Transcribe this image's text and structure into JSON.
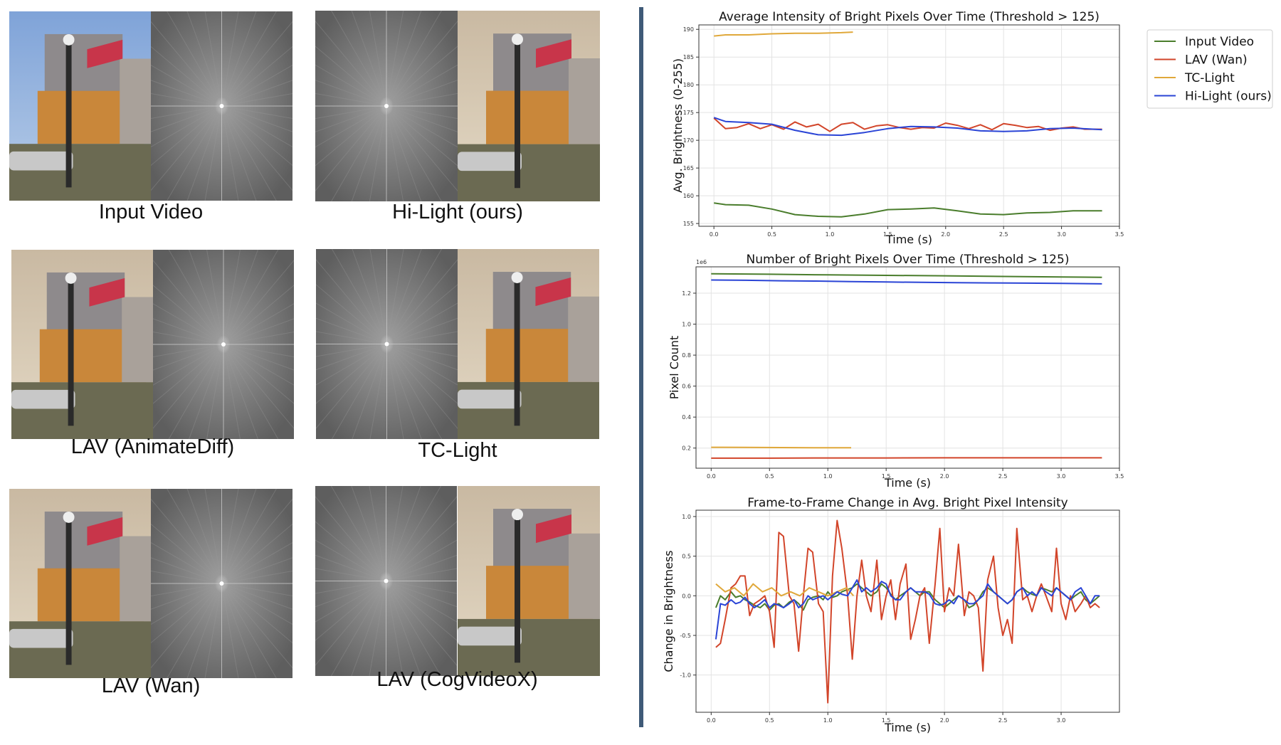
{
  "panels": [
    {
      "caption": "Input Video",
      "layout": "photo-fft"
    },
    {
      "caption": "Hi-Light (ours)",
      "layout": "fft-photo"
    },
    {
      "caption": "LAV (AnimateDiff)",
      "layout": "photo-fft"
    },
    {
      "caption": "TC-Light",
      "layout": "fft-photo"
    },
    {
      "caption": "LAV (Wan)",
      "layout": "photo-fft"
    },
    {
      "caption": "LAV (CogVideoX)",
      "layout": "fft-photo"
    }
  ],
  "colors": {
    "input": "#4a7d2c",
    "lav": "#d2452a",
    "tc": "#e0a83a",
    "hilight": "#2a44d6",
    "divider": "#3f5a78"
  },
  "legend": {
    "entries": [
      "Input Video",
      "LAV (Wan)",
      "TC-Light",
      "Hi-Light (ours)"
    ]
  },
  "chart_data": [
    {
      "type": "line",
      "title": "Average Intensity of Bright Pixels Over Time (Threshold > 125)",
      "xlabel": "Time (s)",
      "ylabel": "Avg. Brightness (0-255)",
      "xlim": [
        -0.13,
        3.5
      ],
      "ylim": [
        154.5,
        190.8
      ],
      "xticks": [
        "0.0",
        "0.5",
        "1.0",
        "1.5",
        "2.0",
        "2.5",
        "3.0",
        "3.5"
      ],
      "yticks": [
        "155",
        "160",
        "165",
        "170",
        "175",
        "180",
        "185",
        "190"
      ],
      "grid": true,
      "series": [
        {
          "name": "Input Video",
          "x": [
            0,
            0.1,
            0.3,
            0.5,
            0.7,
            0.9,
            1.1,
            1.3,
            1.5,
            1.7,
            1.9,
            2.1,
            2.3,
            2.5,
            2.7,
            2.9,
            3.1,
            3.35
          ],
          "y": [
            158.7,
            158.4,
            158.3,
            157.6,
            156.6,
            156.3,
            156.2,
            156.7,
            157.5,
            157.6,
            157.8,
            157.3,
            156.7,
            156.6,
            156.9,
            157.0,
            157.3,
            157.3
          ]
        },
        {
          "name": "LAV (Wan)",
          "x": [
            0,
            0.1,
            0.2,
            0.3,
            0.4,
            0.5,
            0.6,
            0.7,
            0.8,
            0.9,
            1.0,
            1.1,
            1.2,
            1.3,
            1.4,
            1.5,
            1.6,
            1.7,
            1.8,
            1.9,
            2.0,
            2.1,
            2.2,
            2.3,
            2.4,
            2.5,
            2.6,
            2.7,
            2.8,
            2.9,
            3.0,
            3.1,
            3.2,
            3.35
          ],
          "y": [
            174.0,
            172.1,
            172.3,
            173.0,
            172.1,
            172.8,
            172.0,
            173.3,
            172.4,
            172.9,
            171.6,
            172.9,
            173.2,
            172.0,
            172.6,
            172.8,
            172.3,
            172.0,
            172.3,
            172.2,
            173.1,
            172.7,
            172.1,
            172.8,
            171.9,
            173.0,
            172.7,
            172.3,
            172.5,
            171.8,
            172.2,
            172.4,
            172.0,
            172.0
          ]
        },
        {
          "name": "TC-Light",
          "x": [
            0,
            0.1,
            0.3,
            0.5,
            0.7,
            0.9,
            1.1,
            1.2
          ],
          "y": [
            188.8,
            189.0,
            189.0,
            189.2,
            189.3,
            189.3,
            189.4,
            189.5
          ]
        },
        {
          "name": "Hi-Light (ours)",
          "x": [
            0,
            0.1,
            0.3,
            0.5,
            0.7,
            0.9,
            1.1,
            1.3,
            1.5,
            1.7,
            1.9,
            2.1,
            2.3,
            2.5,
            2.7,
            2.9,
            3.1,
            3.35
          ],
          "y": [
            174.1,
            173.4,
            173.2,
            172.9,
            171.8,
            171.0,
            170.9,
            171.4,
            172.1,
            172.5,
            172.4,
            172.2,
            171.7,
            171.6,
            171.7,
            172.1,
            172.2,
            171.9
          ]
        }
      ]
    },
    {
      "type": "line",
      "title": "Number of Bright Pixels Over Time (Threshold > 125)",
      "xlabel": "Time (s)",
      "ylabel": "Pixel Count",
      "scale_label": "1e6",
      "xlim": [
        -0.13,
        3.5
      ],
      "ylim": [
        0.07,
        1.37
      ],
      "xticks": [
        "0.0",
        "0.5",
        "1.0",
        "1.5",
        "2.0",
        "2.5",
        "3.0",
        "3.5"
      ],
      "yticks": [
        "0.2",
        "0.4",
        "0.6",
        "0.8",
        "1.0",
        "1.2"
      ],
      "grid": true,
      "series": [
        {
          "name": "Input Video",
          "x": [
            0,
            0.5,
            1.0,
            1.5,
            2.0,
            2.5,
            3.0,
            3.35
          ],
          "y": [
            1.325,
            1.322,
            1.318,
            1.315,
            1.312,
            1.308,
            1.305,
            1.302
          ]
        },
        {
          "name": "LAV (Wan)",
          "x": [
            0,
            0.5,
            1.0,
            1.5,
            2.0,
            2.5,
            3.0,
            3.35
          ],
          "y": [
            0.135,
            0.135,
            0.136,
            0.136,
            0.137,
            0.137,
            0.137,
            0.137
          ]
        },
        {
          "name": "TC-Light",
          "x": [
            0,
            0.3,
            0.6,
            0.9,
            1.2
          ],
          "y": [
            0.205,
            0.204,
            0.203,
            0.202,
            0.202
          ]
        },
        {
          "name": "Hi-Light (ours)",
          "x": [
            0,
            0.3,
            0.6,
            0.9,
            1.2,
            1.5,
            1.8,
            2.1,
            2.4,
            2.7,
            3.0,
            3.35
          ],
          "y": [
            1.285,
            1.283,
            1.28,
            1.278,
            1.275,
            1.272,
            1.27,
            1.268,
            1.266,
            1.265,
            1.263,
            1.26
          ]
        }
      ]
    },
    {
      "type": "line",
      "title": "Frame-to-Frame Change in Avg. Bright Pixel Intensity",
      "xlabel": "Time (s)",
      "ylabel": "Change in Brightness",
      "xlim": [
        -0.13,
        3.5
      ],
      "ylim": [
        -1.47,
        1.08
      ],
      "xticks": [
        "0.0",
        "0.5",
        "1.0",
        "1.5",
        "2.0",
        "2.5",
        "3.0"
      ],
      "yticks": [
        "-1.0",
        "-0.5",
        "0.0",
        "0.5",
        "1.0"
      ],
      "grid": true,
      "series": [
        {
          "name": "Input Video",
          "x": [
            0.04,
            0.08,
            0.12,
            0.17,
            0.21,
            0.25,
            0.29,
            0.33,
            0.37,
            0.42,
            0.46,
            0.5,
            0.54,
            0.58,
            0.62,
            0.67,
            0.71,
            0.75,
            0.79,
            0.83,
            0.87,
            0.92,
            0.96,
            1.0,
            1.04,
            1.08,
            1.12,
            1.17,
            1.21,
            1.25,
            1.29,
            1.33,
            1.37,
            1.42,
            1.46,
            1.5,
            1.54,
            1.58,
            1.62,
            1.67,
            1.71,
            1.75,
            1.79,
            1.83,
            1.87,
            1.92,
            1.96,
            2.0,
            2.04,
            2.08,
            2.12,
            2.17,
            2.21,
            2.25,
            2.29,
            2.33,
            2.37,
            2.42,
            2.46,
            2.5,
            2.54,
            2.58,
            2.62,
            2.67,
            2.71,
            2.75,
            2.79,
            2.83,
            2.87,
            2.92,
            2.96,
            3.0,
            3.04,
            3.08,
            3.12,
            3.17,
            3.21,
            3.25,
            3.29,
            3.33
          ],
          "y": [
            -0.15,
            0.0,
            -0.05,
            0.05,
            -0.02,
            0.0,
            -0.05,
            -0.08,
            -0.12,
            -0.15,
            -0.1,
            -0.18,
            -0.12,
            -0.1,
            -0.15,
            -0.08,
            -0.05,
            -0.1,
            -0.18,
            -0.05,
            -0.02,
            0.0,
            -0.05,
            0.05,
            -0.02,
            0.0,
            0.05,
            0.08,
            0.1,
            0.15,
            0.1,
            0.05,
            0.0,
            0.05,
            0.15,
            0.1,
            0.02,
            -0.05,
            0.0,
            0.05,
            0.1,
            0.05,
            0.0,
            0.05,
            0.05,
            -0.05,
            -0.1,
            -0.15,
            -0.1,
            -0.05,
            0.0,
            -0.05,
            -0.15,
            -0.12,
            -0.05,
            0.05,
            0.1,
            0.05,
            0.0,
            -0.05,
            -0.1,
            -0.05,
            0.05,
            0.1,
            0.05,
            0.02,
            0.0,
            0.1,
            0.08,
            0.05,
            0.1,
            0.05,
            0.0,
            -0.05,
            0.0,
            0.05,
            -0.05,
            -0.1,
            -0.05,
            0.0
          ]
        },
        {
          "name": "LAV (Wan)",
          "x": [
            0.04,
            0.08,
            0.12,
            0.17,
            0.21,
            0.25,
            0.29,
            0.33,
            0.37,
            0.42,
            0.46,
            0.5,
            0.54,
            0.58,
            0.62,
            0.67,
            0.71,
            0.75,
            0.79,
            0.83,
            0.87,
            0.92,
            0.96,
            1.0,
            1.04,
            1.08,
            1.12,
            1.17,
            1.21,
            1.25,
            1.29,
            1.33,
            1.37,
            1.42,
            1.46,
            1.5,
            1.54,
            1.58,
            1.62,
            1.67,
            1.71,
            1.75,
            1.79,
            1.83,
            1.87,
            1.92,
            1.96,
            2.0,
            2.04,
            2.08,
            2.12,
            2.17,
            2.21,
            2.25,
            2.29,
            2.33,
            2.37,
            2.42,
            2.46,
            2.5,
            2.54,
            2.58,
            2.62,
            2.67,
            2.71,
            2.75,
            2.79,
            2.83,
            2.87,
            2.92,
            2.96,
            3.0,
            3.04,
            3.08,
            3.12,
            3.17,
            3.21,
            3.25,
            3.29,
            3.33
          ],
          "y": [
            -0.65,
            -0.6,
            -0.3,
            0.1,
            0.15,
            0.25,
            0.25,
            -0.25,
            -0.1,
            -0.05,
            0.0,
            -0.2,
            -0.65,
            0.8,
            0.75,
            0.0,
            -0.1,
            -0.7,
            0.0,
            0.6,
            0.55,
            -0.1,
            -0.2,
            -1.35,
            0.25,
            0.95,
            0.6,
            0.0,
            -0.8,
            0.0,
            0.45,
            0.0,
            -0.2,
            0.45,
            -0.3,
            0.0,
            0.2,
            -0.3,
            0.15,
            0.4,
            -0.55,
            -0.3,
            0.0,
            0.1,
            -0.6,
            0.15,
            0.85,
            -0.2,
            0.1,
            0.0,
            0.65,
            -0.25,
            0.05,
            0.0,
            -0.15,
            -0.95,
            0.2,
            0.5,
            -0.15,
            -0.5,
            -0.3,
            -0.6,
            0.85,
            -0.05,
            0.0,
            -0.2,
            0.0,
            0.15,
            0.0,
            -0.2,
            0.6,
            -0.1,
            -0.3,
            0.0,
            -0.2,
            -0.1,
            0.0,
            -0.15,
            -0.1,
            -0.15
          ]
        },
        {
          "name": "TC-Light",
          "x": [
            0.04,
            0.12,
            0.2,
            0.28,
            0.36,
            0.44,
            0.52,
            0.6,
            0.68,
            0.76,
            0.84,
            0.92,
            1.0,
            1.08,
            1.16,
            1.22
          ],
          "y": [
            0.15,
            0.05,
            0.1,
            0.0,
            0.15,
            0.05,
            0.1,
            0.0,
            0.05,
            0.0,
            0.1,
            0.05,
            0.0,
            0.05,
            0.1,
            0.0
          ]
        },
        {
          "name": "Hi-Light (ours)",
          "x": [
            0.04,
            0.08,
            0.12,
            0.17,
            0.21,
            0.25,
            0.29,
            0.33,
            0.37,
            0.42,
            0.46,
            0.5,
            0.54,
            0.58,
            0.62,
            0.67,
            0.71,
            0.75,
            0.79,
            0.83,
            0.87,
            0.92,
            0.96,
            1.0,
            1.04,
            1.08,
            1.12,
            1.17,
            1.21,
            1.25,
            1.29,
            1.33,
            1.37,
            1.42,
            1.46,
            1.5,
            1.54,
            1.58,
            1.62,
            1.67,
            1.71,
            1.75,
            1.79,
            1.83,
            1.87,
            1.92,
            1.96,
            2.0,
            2.04,
            2.08,
            2.12,
            2.17,
            2.21,
            2.25,
            2.29,
            2.33,
            2.37,
            2.42,
            2.46,
            2.5,
            2.54,
            2.58,
            2.62,
            2.67,
            2.71,
            2.75,
            2.79,
            2.83,
            2.87,
            2.92,
            2.96,
            3.0,
            3.04,
            3.08,
            3.12,
            3.17,
            3.21,
            3.25,
            3.29,
            3.33
          ],
          "y": [
            -0.55,
            -0.1,
            -0.12,
            -0.05,
            -0.1,
            -0.08,
            -0.02,
            -0.1,
            -0.15,
            -0.1,
            -0.05,
            -0.15,
            -0.1,
            -0.12,
            -0.15,
            -0.1,
            -0.05,
            -0.15,
            -0.1,
            0.0,
            -0.05,
            -0.02,
            0.0,
            -0.05,
            0.0,
            0.05,
            0.02,
            0.0,
            0.1,
            0.2,
            0.05,
            0.1,
            0.05,
            0.1,
            0.18,
            0.15,
            0.0,
            -0.05,
            -0.05,
            0.05,
            0.1,
            0.05,
            0.05,
            0.05,
            0.02,
            -0.1,
            -0.12,
            -0.1,
            -0.05,
            -0.1,
            0.0,
            -0.05,
            -0.1,
            -0.1,
            -0.05,
            0.0,
            0.15,
            0.05,
            0.0,
            -0.05,
            -0.1,
            -0.05,
            0.05,
            0.1,
            0.0,
            0.05,
            0.0,
            0.1,
            0.05,
            0.0,
            0.1,
            0.05,
            0.0,
            -0.05,
            0.05,
            0.1,
            0.0,
            -0.1,
            0.0,
            0.0
          ]
        }
      ]
    }
  ]
}
